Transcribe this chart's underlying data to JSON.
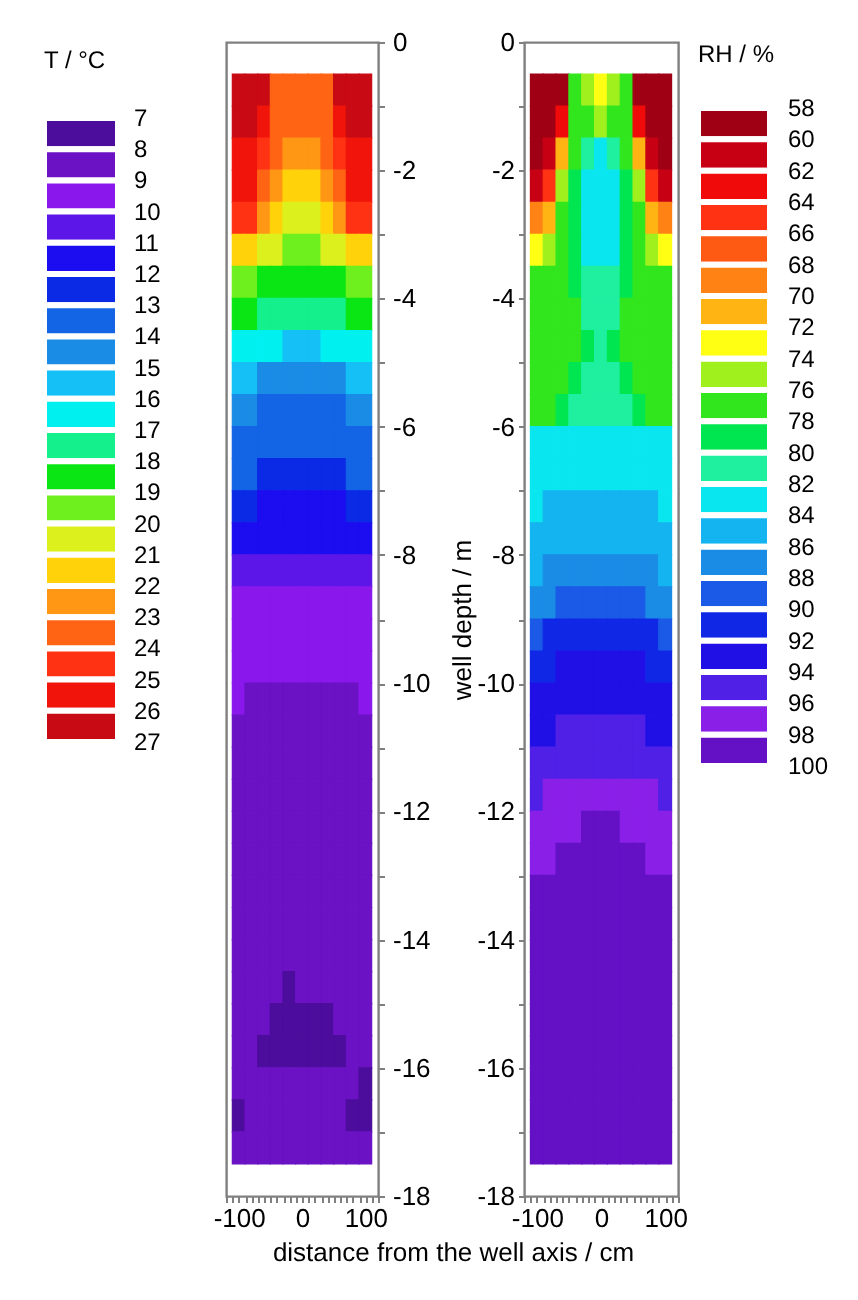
{
  "chart_data": [
    {
      "type": "heatmap",
      "xlabel": "distance from the well axis / cm",
      "ylabel": "well depth / m",
      "clabel": "T / °C",
      "x": [
        -100,
        -80,
        -60,
        -40,
        -20,
        0,
        20,
        40,
        60,
        80,
        100
      ],
      "y": [
        -0.75,
        -1.25,
        -1.75,
        -2.25,
        -2.75,
        -3.25,
        -3.75,
        -4.25,
        -4.75,
        -5.25,
        -5.75,
        -6.25,
        -6.75,
        -7.25,
        -7.75,
        -8.25,
        -8.75,
        -9.25,
        -9.75,
        -10.25,
        -10.75,
        -11.25,
        -11.75,
        -12.25,
        -12.75,
        -13.25,
        -13.75,
        -14.25,
        -14.75,
        -15.25,
        -15.75,
        -16.25,
        -16.75,
        -17.25
      ],
      "cells": [
        [
          26.5,
          26.5,
          26.5,
          23.5,
          23.5,
          23.5,
          23.5,
          23.5,
          26.5,
          26.5,
          26.5
        ],
        [
          26.5,
          26.5,
          25.5,
          23.5,
          23.5,
          23.5,
          23.5,
          23.5,
          25.5,
          26.5,
          26.5
        ],
        [
          25.5,
          25.5,
          24.5,
          23.5,
          22.5,
          22.5,
          22.5,
          23.5,
          24.5,
          25.5,
          25.5
        ],
        [
          25.5,
          25.5,
          23.5,
          22.5,
          21.5,
          21.5,
          21.5,
          22.5,
          23.5,
          25.5,
          25.5
        ],
        [
          24.5,
          24.5,
          22.5,
          21.5,
          20.5,
          20.5,
          20.5,
          21.5,
          22.5,
          24.5,
          24.5
        ],
        [
          21.5,
          21.5,
          20.5,
          20.5,
          19.5,
          19.5,
          19.5,
          20.5,
          20.5,
          21.5,
          21.5
        ],
        [
          19.5,
          19.5,
          18.5,
          18.5,
          18.5,
          18.5,
          18.5,
          18.5,
          18.5,
          19.5,
          19.5
        ],
        [
          18.5,
          18.5,
          17.5,
          17.5,
          17.5,
          17.5,
          17.5,
          17.5,
          17.5,
          18.5,
          18.5
        ],
        [
          16.5,
          16.5,
          16.5,
          16.5,
          15.5,
          15.5,
          15.5,
          16.5,
          16.5,
          16.5,
          16.5
        ],
        [
          15.5,
          15.5,
          14.5,
          14.5,
          14.5,
          14.5,
          14.5,
          14.5,
          14.5,
          15.5,
          15.5
        ],
        [
          14.5,
          14.5,
          13.5,
          13.5,
          13.5,
          13.5,
          13.5,
          13.5,
          13.5,
          14.5,
          14.5
        ],
        [
          13.5,
          13.5,
          13.5,
          13.5,
          13.5,
          13.5,
          13.5,
          13.5,
          13.5,
          13.5,
          13.5
        ],
        [
          13.5,
          13.5,
          12.5,
          12.5,
          12.5,
          12.5,
          12.5,
          12.5,
          12.5,
          13.5,
          13.5
        ],
        [
          12.5,
          12.5,
          11.5,
          11.5,
          11.5,
          11.5,
          11.5,
          11.5,
          11.5,
          12.5,
          12.5
        ],
        [
          11.5,
          11.5,
          11.5,
          11.5,
          11.5,
          11.5,
          11.5,
          11.5,
          11.5,
          11.5,
          11.5
        ],
        [
          10.5,
          10.5,
          10.5,
          10.5,
          10.5,
          10.5,
          10.5,
          10.5,
          10.5,
          10.5,
          10.5
        ],
        [
          9.5,
          9.5,
          9.5,
          9.5,
          9.5,
          9.5,
          9.5,
          9.5,
          9.5,
          9.5,
          9.5
        ],
        [
          9.5,
          9.5,
          9.5,
          9.5,
          9.5,
          9.5,
          9.5,
          9.5,
          9.5,
          9.5,
          9.5
        ],
        [
          9.5,
          9.5,
          9.5,
          9.5,
          9.5,
          9.5,
          9.5,
          9.5,
          9.5,
          9.5,
          9.5
        ],
        [
          9.5,
          8.5,
          8.5,
          8.5,
          8.5,
          8.5,
          8.5,
          8.5,
          8.5,
          8.5,
          9.5
        ],
        [
          8.5,
          8.5,
          8.5,
          8.5,
          8.5,
          8.5,
          8.5,
          8.5,
          8.5,
          8.5,
          8.5
        ],
        [
          8.5,
          8.5,
          8.5,
          8.5,
          8.5,
          8.5,
          8.5,
          8.5,
          8.5,
          8.5,
          8.5
        ],
        [
          8.5,
          8.5,
          8.5,
          8.5,
          8.5,
          8.5,
          8.5,
          8.5,
          8.5,
          8.5,
          8.5
        ],
        [
          8.5,
          8.5,
          8.5,
          8.5,
          8.5,
          8.5,
          8.5,
          8.5,
          8.5,
          8.5,
          8.5
        ],
        [
          8.5,
          8.5,
          8.5,
          8.5,
          8.5,
          8.5,
          8.5,
          8.5,
          8.5,
          8.5,
          8.5
        ],
        [
          8.5,
          8.5,
          8.5,
          8.5,
          8.5,
          8.5,
          8.5,
          8.5,
          8.5,
          8.5,
          8.5
        ],
        [
          8.5,
          8.5,
          8.5,
          8.5,
          8.5,
          8.5,
          8.5,
          8.5,
          8.5,
          8.5,
          8.5
        ],
        [
          8.5,
          8.5,
          8.5,
          8.5,
          8.5,
          8.5,
          8.5,
          8.5,
          8.5,
          8.5,
          8.5
        ],
        [
          8.5,
          8.5,
          8.5,
          8.5,
          7.5,
          8.5,
          8.5,
          8.5,
          8.5,
          8.5,
          8.5
        ],
        [
          8.5,
          8.5,
          8.5,
          7.5,
          7.5,
          7.5,
          7.5,
          7.5,
          8.5,
          8.5,
          8.5
        ],
        [
          8.5,
          8.5,
          7.5,
          7.5,
          7.5,
          7.5,
          7.5,
          7.5,
          7.5,
          8.5,
          8.5
        ],
        [
          8.5,
          8.5,
          8.5,
          8.5,
          8.5,
          8.5,
          8.5,
          8.5,
          8.5,
          8.5,
          7.5
        ],
        [
          7.5,
          8.5,
          8.5,
          8.5,
          8.5,
          8.5,
          8.5,
          8.5,
          8.5,
          7.5,
          7.5
        ],
        [
          8.5,
          8.5,
          8.5,
          8.5,
          8.5,
          8.5,
          8.5,
          8.5,
          8.5,
          8.5,
          8.5
        ]
      ],
      "clim": [
        7,
        27
      ],
      "cticks": [
        7,
        8,
        9,
        10,
        11,
        12,
        13,
        14,
        15,
        16,
        17,
        18,
        19,
        20,
        21,
        22,
        23,
        24,
        25,
        26,
        27
      ],
      "colors": [
        "#4c0c9c",
        "#6a12c4",
        "#8a18ec",
        "#5c17e8",
        "#1c0cf0",
        "#0a2ae6",
        "#1464e6",
        "#1a8ce6",
        "#14c0f5",
        "#00f0f0",
        "#14f08c",
        "#0ae614",
        "#6ef01e",
        "#dcf01e",
        "#ffd20a",
        "#ff9614",
        "#ff6414",
        "#ff3214",
        "#f0140a",
        "#c80a14"
      ],
      "xlim": [
        -120,
        120
      ],
      "xticks": [
        {
          "value": -120,
          "label": null
        },
        {
          "value": -110,
          "label": null
        },
        -100,
        {
          "value": -90,
          "label": null
        },
        {
          "value": -80,
          "label": null
        },
        {
          "value": -70,
          "label": null
        },
        {
          "value": -60,
          "label": null
        },
        {
          "value": -50,
          "label": null
        },
        {
          "value": -40,
          "label": null
        },
        {
          "value": -30,
          "label": null
        },
        {
          "value": -20,
          "label": null
        },
        {
          "value": -10,
          "label": null
        },
        0,
        {
          "value": 10,
          "label": null
        },
        {
          "value": 20,
          "label": null
        },
        {
          "value": 30,
          "label": null
        },
        {
          "value": 40,
          "label": null
        },
        {
          "value": 50,
          "label": null
        },
        {
          "value": 60,
          "label": null
        },
        {
          "value": 70,
          "label": null
        },
        {
          "value": 80,
          "label": null
        },
        {
          "value": 90,
          "label": null
        },
        100,
        {
          "value": 110,
          "label": null
        },
        {
          "value": 120,
          "label": null
        }
      ],
      "ylim": [
        -18,
        0
      ],
      "yticks": [
        0,
        {
          "value": -1,
          "label": null
        },
        -2,
        {
          "value": -3,
          "label": null
        },
        -4,
        {
          "value": -5,
          "label": null
        },
        -6,
        {
          "value": -7,
          "label": null
        },
        -8,
        {
          "value": -9,
          "label": null
        },
        -10,
        {
          "value": -11,
          "label": null
        },
        -12,
        {
          "value": -13,
          "label": null
        },
        -14,
        {
          "value": -15,
          "label": null
        },
        -16,
        {
          "value": -17,
          "label": null
        },
        -18
      ]
    },
    {
      "type": "heatmap",
      "clabel": "RH / %",
      "x": [
        -100,
        -80,
        -60,
        -40,
        -20,
        0,
        20,
        40,
        60,
        80,
        100
      ],
      "y": [
        -0.75,
        -1.25,
        -1.75,
        -2.25,
        -2.75,
        -3.25,
        -3.75,
        -4.25,
        -4.75,
        -5.25,
        -5.75,
        -6.25,
        -6.75,
        -7.25,
        -7.75,
        -8.25,
        -8.75,
        -9.25,
        -9.75,
        -10.25,
        -10.75,
        -11.25,
        -11.75,
        -12.25,
        -12.75,
        -13.25,
        -13.75,
        -14.25,
        -14.75,
        -15.25,
        -15.75,
        -16.25,
        -16.75,
        -17.25
      ],
      "cells": [
        [
          59,
          59,
          59,
          77,
          75,
          73,
          75,
          77,
          59,
          59,
          59
        ],
        [
          59,
          59,
          63,
          77,
          77,
          75,
          77,
          77,
          63,
          59,
          59
        ],
        [
          59,
          61,
          71,
          77,
          81,
          83,
          81,
          77,
          71,
          61,
          59
        ],
        [
          61,
          65,
          75,
          79,
          83,
          83,
          83,
          79,
          75,
          65,
          61
        ],
        [
          69,
          71,
          77,
          79,
          83,
          83,
          83,
          79,
          77,
          71,
          69
        ],
        [
          73,
          75,
          77,
          79,
          83,
          83,
          83,
          79,
          77,
          75,
          73
        ],
        [
          77,
          77,
          77,
          79,
          81,
          81,
          81,
          79,
          77,
          77,
          77
        ],
        [
          77,
          77,
          77,
          77,
          81,
          81,
          81,
          77,
          77,
          77,
          77
        ],
        [
          77,
          77,
          77,
          77,
          79,
          81,
          79,
          77,
          77,
          77,
          77
        ],
        [
          77,
          77,
          77,
          79,
          81,
          81,
          81,
          79,
          77,
          77,
          77
        ],
        [
          77,
          77,
          79,
          81,
          81,
          81,
          81,
          81,
          79,
          77,
          77
        ],
        [
          83,
          83,
          83,
          83,
          83,
          83,
          83,
          83,
          83,
          83,
          83
        ],
        [
          83,
          83,
          83,
          83,
          83,
          83,
          83,
          83,
          83,
          83,
          83
        ],
        [
          83,
          85,
          85,
          85,
          85,
          85,
          85,
          85,
          85,
          85,
          83
        ],
        [
          85,
          85,
          85,
          85,
          85,
          85,
          85,
          85,
          85,
          85,
          85
        ],
        [
          85,
          87,
          87,
          87,
          87,
          87,
          87,
          87,
          87,
          87,
          85
        ],
        [
          87,
          87,
          89,
          89,
          89,
          89,
          89,
          89,
          89,
          87,
          87
        ],
        [
          89,
          91,
          91,
          91,
          91,
          91,
          91,
          91,
          91,
          91,
          89
        ],
        [
          91,
          91,
          93,
          93,
          93,
          93,
          93,
          93,
          93,
          91,
          91
        ],
        [
          93,
          93,
          93,
          93,
          93,
          93,
          93,
          93,
          93,
          93,
          93
        ],
        [
          93,
          93,
          95,
          95,
          95,
          95,
          95,
          95,
          95,
          93,
          93
        ],
        [
          95,
          95,
          95,
          95,
          95,
          95,
          95,
          95,
          95,
          95,
          95
        ],
        [
          95,
          97,
          97,
          97,
          97,
          97,
          97,
          97,
          97,
          97,
          95
        ],
        [
          97,
          97,
          97,
          97,
          99,
          99,
          99,
          97,
          97,
          97,
          97
        ],
        [
          97,
          97,
          99,
          99,
          99,
          99,
          99,
          99,
          99,
          97,
          97
        ],
        [
          99,
          99,
          99,
          99,
          99,
          99,
          99,
          99,
          99,
          99,
          99
        ],
        [
          99,
          99,
          99,
          99,
          99,
          99,
          99,
          99,
          99,
          99,
          99
        ],
        [
          99,
          99,
          99,
          99,
          99,
          99,
          99,
          99,
          99,
          99,
          99
        ],
        [
          99,
          99,
          99,
          99,
          99,
          99,
          99,
          99,
          99,
          99,
          99
        ],
        [
          99,
          99,
          99,
          99,
          99,
          99,
          99,
          99,
          99,
          99,
          99
        ],
        [
          99,
          99,
          99,
          99,
          99,
          99,
          99,
          99,
          99,
          99,
          99
        ],
        [
          99,
          99,
          99,
          99,
          99,
          99,
          99,
          99,
          99,
          99,
          99
        ],
        [
          99,
          99,
          99,
          99,
          99,
          99,
          99,
          99,
          99,
          99,
          99
        ],
        [
          99,
          99,
          99,
          99,
          99,
          99,
          99,
          99,
          99,
          99,
          99
        ]
      ],
      "clim": [
        58,
        100
      ],
      "cticks": [
        58,
        60,
        62,
        64,
        66,
        68,
        70,
        72,
        74,
        76,
        78,
        80,
        82,
        84,
        86,
        88,
        90,
        92,
        94,
        96,
        98,
        100
      ],
      "colors": [
        "#a00014",
        "#c80014",
        "#f00a0a",
        "#ff3214",
        "#ff5a14",
        "#ff8214",
        "#ffb414",
        "#ffff14",
        "#a0f01e",
        "#32e61e",
        "#00e650",
        "#1ef0a0",
        "#0ae6f0",
        "#14b4f0",
        "#1a8ce6",
        "#1a5ae6",
        "#1028e6",
        "#2010e6",
        "#5020e6",
        "#8a20e8",
        "#6410c4"
      ],
      "xlim": [
        -120,
        120
      ],
      "xticks": [
        {
          "value": -120,
          "label": null
        },
        {
          "value": -110,
          "label": null
        },
        -100,
        {
          "value": -90,
          "label": null
        },
        {
          "value": -80,
          "label": null
        },
        {
          "value": -70,
          "label": null
        },
        {
          "value": -60,
          "label": null
        },
        {
          "value": -50,
          "label": null
        },
        {
          "value": -40,
          "label": null
        },
        {
          "value": -30,
          "label": null
        },
        {
          "value": -20,
          "label": null
        },
        {
          "value": -10,
          "label": null
        },
        0,
        {
          "value": 10,
          "label": null
        },
        {
          "value": 20,
          "label": null
        },
        {
          "value": 30,
          "label": null
        },
        {
          "value": 40,
          "label": null
        },
        {
          "value": 50,
          "label": null
        },
        {
          "value": 60,
          "label": null
        },
        {
          "value": 70,
          "label": null
        },
        {
          "value": 80,
          "label": null
        },
        {
          "value": 90,
          "label": null
        },
        100,
        {
          "value": 110,
          "label": null
        },
        {
          "value": 120,
          "label": null
        }
      ],
      "ylim": [
        -18,
        0
      ],
      "yticks": [
        0,
        {
          "value": -1,
          "label": null
        },
        -2,
        {
          "value": -3,
          "label": null
        },
        -4,
        {
          "value": -5,
          "label": null
        },
        -6,
        {
          "value": -7,
          "label": null
        },
        -8,
        {
          "value": -9,
          "label": null
        },
        -10,
        {
          "value": -11,
          "label": null
        },
        -12,
        {
          "value": -13,
          "label": null
        },
        -14,
        {
          "value": -15,
          "label": null
        },
        -16,
        {
          "value": -17,
          "label": null
        },
        -18
      ]
    }
  ]
}
